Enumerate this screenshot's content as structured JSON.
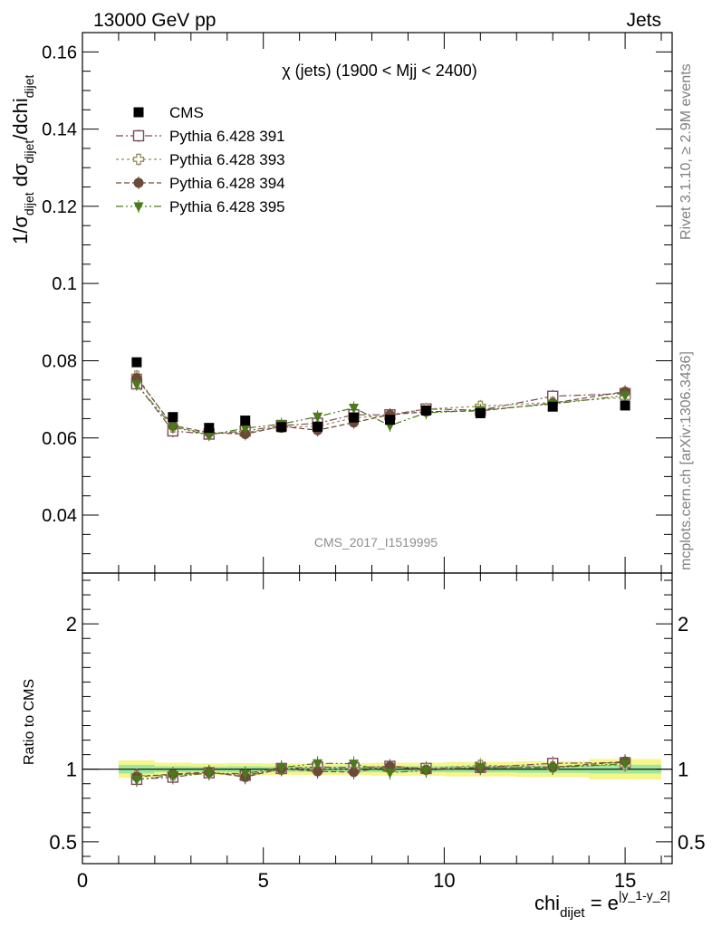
{
  "header": {
    "left": "13000 GeV pp",
    "right": "Jets"
  },
  "side_labels": {
    "rivet": "Rivet 3.1.10, ≥ 2.9M events",
    "mcplots": "mcplots.cern.ch [arXiv:1306.3436]"
  },
  "analysis_id": "CMS_2017_I1519995",
  "chart_data": [
    {
      "type": "scatter",
      "panel": "main",
      "title": "χ (jets) (1900 < Mjj < 2400)",
      "ylabel": "1/σ_dijet dσ_dijet/dchi_dijet",
      "xlim": [
        0,
        16.3
      ],
      "ylim": [
        0.025,
        0.165
      ],
      "yticks": [
        0.04,
        0.06,
        0.08,
        0.1,
        0.12,
        0.14,
        0.16
      ],
      "ytick_labels": [
        "0.04",
        "0.06",
        "0.08",
        "0.1",
        "0.12",
        "0.14",
        "0.16"
      ],
      "x": [
        1.5,
        2.5,
        3.5,
        4.5,
        5.5,
        6.5,
        7.5,
        8.5,
        9.5,
        11.0,
        13.0,
        15.0
      ],
      "series": [
        {
          "name": "CMS",
          "color": "#000000",
          "marker": "square",
          "values": [
            0.0796,
            0.0654,
            0.0626,
            0.0645,
            0.0628,
            0.0629,
            0.0653,
            0.0647,
            0.0671,
            0.0664,
            0.0681,
            0.0684
          ]
        },
        {
          "name": "Pythia 6.428 391",
          "color": "#7a4a5a",
          "marker": "open-square",
          "dash": "8,3,2,3",
          "values": [
            0.074,
            0.0618,
            0.061,
            0.0618,
            0.0632,
            0.0638,
            0.066,
            0.066,
            0.0675,
            0.0672,
            0.0708,
            0.0715
          ]
        },
        {
          "name": "Pythia 6.428 393",
          "color": "#9a8a5a",
          "marker": "open-cross",
          "dash": "3,3",
          "values": [
            0.076,
            0.0628,
            0.0612,
            0.0614,
            0.0628,
            0.063,
            0.0652,
            0.0658,
            0.0675,
            0.0682,
            0.0692,
            0.0705
          ]
        },
        {
          "name": "Pythia 6.428 394",
          "color": "#6b4a3a",
          "marker": "circle",
          "dash": "6,3",
          "values": [
            0.0755,
            0.0632,
            0.0614,
            0.061,
            0.063,
            0.062,
            0.064,
            0.066,
            0.0668,
            0.067,
            0.069,
            0.072
          ]
        },
        {
          "name": "Pythia 6.428 395",
          "color": "#4a7a1a",
          "marker": "triangle-down",
          "dash": "8,3,2,3,2,3",
          "values": [
            0.0738,
            0.0628,
            0.0608,
            0.0625,
            0.0636,
            0.0655,
            0.0678,
            0.0632,
            0.0665,
            0.0672,
            0.0688,
            0.071
          ]
        }
      ]
    },
    {
      "type": "scatter",
      "panel": "ratio",
      "ylabel": "Ratio to CMS",
      "xlabel": "chi_dijet = e^|y_1-y_2|",
      "xlim": [
        0,
        16.3
      ],
      "ylim": [
        0.35,
        2.35
      ],
      "yticks": [
        0.5,
        1,
        2
      ],
      "ytick_labels": [
        "0.5",
        "1",
        "2"
      ],
      "xticks": [
        0,
        5,
        10,
        15
      ],
      "xtick_labels": [
        "0",
        "5",
        "10",
        "15"
      ],
      "x": [
        1.5,
        2.5,
        3.5,
        4.5,
        5.5,
        6.5,
        7.5,
        8.5,
        9.5,
        11.0,
        13.0,
        15.0
      ],
      "band_x_edges": [
        1.0,
        2.0,
        3.0,
        4.0,
        5.0,
        6.0,
        7.0,
        8.0,
        9.0,
        10.0,
        12.0,
        14.0,
        16.0
      ],
      "band_inner": [
        0.03,
        0.02,
        0.018,
        0.02,
        0.018,
        0.018,
        0.02,
        0.02,
        0.02,
        0.022,
        0.025,
        0.03
      ],
      "band_outer": [
        0.06,
        0.045,
        0.04,
        0.042,
        0.04,
        0.04,
        0.042,
        0.045,
        0.045,
        0.05,
        0.055,
        0.07
      ],
      "series": [
        {
          "name": "Pythia 6.428 391",
          "values": [
            0.93,
            0.945,
            0.975,
            0.958,
            1.005,
            1.015,
            1.01,
            1.02,
            1.005,
            1.012,
            1.04,
            1.045
          ]
        },
        {
          "name": "Pythia 6.428 393",
          "values": [
            0.955,
            0.96,
            0.978,
            0.952,
            1.0,
            1.0,
            1.0,
            1.017,
            1.005,
            1.027,
            1.016,
            1.03
          ]
        },
        {
          "name": "Pythia 6.428 394",
          "values": [
            0.948,
            0.966,
            0.98,
            0.946,
            1.003,
            0.985,
            0.98,
            1.02,
            0.995,
            1.009,
            1.013,
            1.053
          ]
        },
        {
          "name": "Pythia 6.428 395",
          "values": [
            0.927,
            0.96,
            0.972,
            0.97,
            1.012,
            1.04,
            1.038,
            0.977,
            0.991,
            1.012,
            1.01,
            1.038
          ]
        }
      ]
    }
  ]
}
